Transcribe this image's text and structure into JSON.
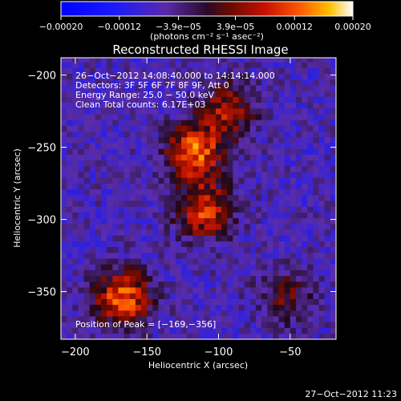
{
  "chart_data": {
    "type": "heatmap",
    "title": "Reconstructed RHESSI Image",
    "xlabel": "Heliocentric X (arcsec)",
    "ylabel": "Heliocentric Y (arcsec)",
    "xlim": [
      -210,
      -18
    ],
    "ylim": [
      -383,
      -188
    ],
    "x_ticks": [
      -200,
      -150,
      -100,
      -50
    ],
    "x_tick_labels": [
      "−200",
      "−150",
      "−100",
      "−50"
    ],
    "y_ticks": [
      -200,
      -250,
      -300,
      -350
    ],
    "y_tick_labels": [
      "−200",
      "−250",
      "−300",
      "−350"
    ],
    "colorbar": {
      "min": -0.0002,
      "max": 0.0002,
      "ticks": [
        -0.0002,
        -0.00012,
        -3.9e-05,
        3.9e-05,
        0.00012,
        0.0002
      ],
      "tick_labels": [
        "−0.00020",
        "−0.00012",
        "−3.9e−05",
        "3.9e−05",
        "0.00012",
        "0.00020"
      ],
      "unit_label": "(photons cm⁻² s⁻¹ asec⁻²)"
    },
    "sources": [
      {
        "x": -119,
        "y": -255,
        "value": 0.0002
      },
      {
        "x": -112,
        "y": -296,
        "value": 0.00017
      },
      {
        "x": -169,
        "y": -356,
        "value": 0.0002
      },
      {
        "x": -95,
        "y": -225,
        "value": 0.00013
      },
      {
        "x": -55,
        "y": -355,
        "value": 9e-05
      }
    ],
    "annotations": [
      "26−Oct−2012 14:08:40.000 to 14:14:14.000",
      "Detectors: 3F 5F 6F 7F 8F 9F, Att 0",
      "Energy Range: 25.0 − 50.0 keV",
      "Clean     Total counts: 6.17E+03"
    ],
    "peak_label": "Position of Peak = [−169,−356]"
  },
  "footer": {
    "timestamp": "27−Oct−2012 11:23"
  },
  "colors": {
    "background": "#000000",
    "foreground": "#ffffff"
  }
}
